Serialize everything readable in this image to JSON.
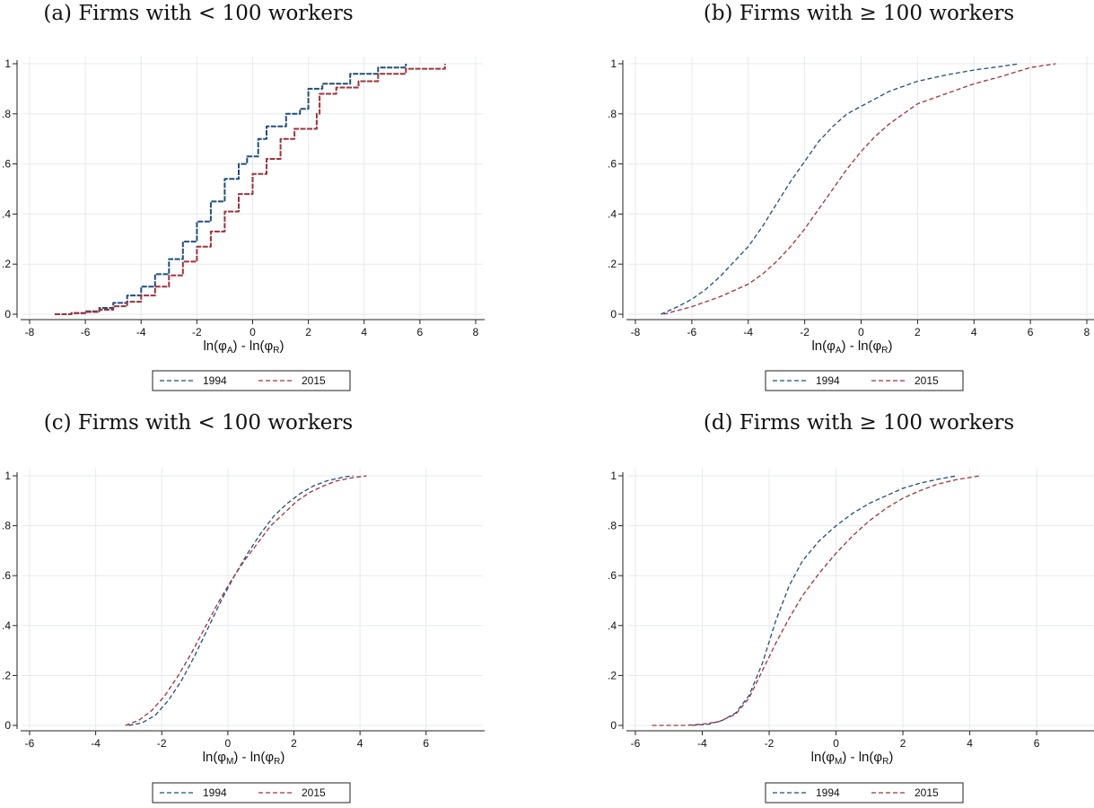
{
  "chart_data": [
    {
      "type": "line",
      "title": "(a) Firms with < 100 workers",
      "xlabel": {
        "main1": "ln(φ",
        "sub1": "A",
        "mid": ") - ln(φ",
        "sub2": "R",
        "end": ")"
      },
      "ylabel": "",
      "xlim": [
        -8,
        8
      ],
      "ylim": [
        0,
        1
      ],
      "xticks": [
        "-8",
        "-6",
        "-4",
        "-2",
        "0",
        "2",
        "4",
        "6",
        "8"
      ],
      "yticks": [
        "0",
        ".2",
        ".4",
        ".6",
        ".8",
        "1"
      ],
      "grid": true,
      "legend": [
        "1994",
        "2015"
      ],
      "series": [
        {
          "name": "1994",
          "color": "#1f4e7d",
          "steps": true,
          "points": [
            [
              -7.1,
              0
            ],
            [
              -6.5,
              0.005
            ],
            [
              -6.0,
              0.012
            ],
            [
              -5.5,
              0.025
            ],
            [
              -5.0,
              0.045
            ],
            [
              -4.5,
              0.075
            ],
            [
              -4.0,
              0.11
            ],
            [
              -3.5,
              0.16
            ],
            [
              -3.0,
              0.22
            ],
            [
              -2.5,
              0.29
            ],
            [
              -2.0,
              0.37
            ],
            [
              -1.5,
              0.45
            ],
            [
              -1.0,
              0.54
            ],
            [
              -0.5,
              0.6
            ],
            [
              -0.2,
              0.63
            ],
            [
              0.2,
              0.7
            ],
            [
              0.5,
              0.75
            ],
            [
              1.2,
              0.8
            ],
            [
              1.7,
              0.82
            ],
            [
              2.0,
              0.9
            ],
            [
              2.5,
              0.92
            ],
            [
              3.5,
              0.96
            ],
            [
              4.5,
              0.985
            ],
            [
              5.5,
              1.0
            ]
          ]
        },
        {
          "name": "2015",
          "color": "#a0323a",
          "steps": true,
          "points": [
            [
              -7.1,
              0
            ],
            [
              -6.5,
              0.004
            ],
            [
              -6.0,
              0.009
            ],
            [
              -5.5,
              0.018
            ],
            [
              -5.0,
              0.032
            ],
            [
              -4.5,
              0.05
            ],
            [
              -4.0,
              0.075
            ],
            [
              -3.5,
              0.11
            ],
            [
              -3.0,
              0.155
            ],
            [
              -2.5,
              0.21
            ],
            [
              -2.0,
              0.27
            ],
            [
              -1.5,
              0.33
            ],
            [
              -1.0,
              0.41
            ],
            [
              -0.5,
              0.48
            ],
            [
              0.0,
              0.56
            ],
            [
              0.5,
              0.62
            ],
            [
              1.0,
              0.7
            ],
            [
              1.5,
              0.74
            ],
            [
              2.3,
              0.8
            ],
            [
              2.4,
              0.88
            ],
            [
              3.0,
              0.905
            ],
            [
              3.8,
              0.93
            ],
            [
              4.5,
              0.96
            ],
            [
              5.5,
              0.98
            ],
            [
              6.9,
              1.0
            ]
          ]
        }
      ]
    },
    {
      "type": "line",
      "title": "(b) Firms with ≥ 100 workers",
      "xlabel": {
        "main1": "ln(φ",
        "sub1": "A",
        "mid": ") - ln(φ",
        "sub2": "R",
        "end": ")"
      },
      "ylabel": "",
      "xlim": [
        -8,
        8
      ],
      "ylim": [
        0,
        1
      ],
      "xticks": [
        "-8",
        "-6",
        "-4",
        "-2",
        "0",
        "2",
        "4",
        "6",
        "8"
      ],
      "yticks": [
        "0",
        ".2",
        ".4",
        ".6",
        ".8",
        "1"
      ],
      "grid": true,
      "legend": [
        "1994",
        "2015"
      ],
      "series": [
        {
          "name": "1994",
          "color": "#1f4e7d",
          "steps": false,
          "points": [
            [
              -7.1,
              0
            ],
            [
              -6.5,
              0.03
            ],
            [
              -6.0,
              0.06
            ],
            [
              -5.5,
              0.1
            ],
            [
              -5.0,
              0.15
            ],
            [
              -4.5,
              0.21
            ],
            [
              -4.0,
              0.27
            ],
            [
              -3.5,
              0.35
            ],
            [
              -3.0,
              0.44
            ],
            [
              -2.5,
              0.53
            ],
            [
              -2.0,
              0.61
            ],
            [
              -1.5,
              0.69
            ],
            [
              -1.0,
              0.75
            ],
            [
              -0.5,
              0.8
            ],
            [
              0.0,
              0.83
            ],
            [
              0.5,
              0.86
            ],
            [
              1.0,
              0.89
            ],
            [
              1.5,
              0.91
            ],
            [
              2.0,
              0.93
            ],
            [
              3.0,
              0.955
            ],
            [
              4.0,
              0.975
            ],
            [
              5.0,
              0.99
            ],
            [
              5.6,
              1.0
            ]
          ]
        },
        {
          "name": "2015",
          "color": "#a0323a",
          "steps": false,
          "points": [
            [
              -7.0,
              0
            ],
            [
              -6.0,
              0.03
            ],
            [
              -5.0,
              0.07
            ],
            [
              -4.0,
              0.12
            ],
            [
              -3.5,
              0.16
            ],
            [
              -3.0,
              0.21
            ],
            [
              -2.5,
              0.27
            ],
            [
              -2.0,
              0.34
            ],
            [
              -1.5,
              0.42
            ],
            [
              -1.0,
              0.5
            ],
            [
              -0.5,
              0.58
            ],
            [
              0.0,
              0.65
            ],
            [
              0.5,
              0.71
            ],
            [
              1.0,
              0.76
            ],
            [
              1.5,
              0.8
            ],
            [
              2.0,
              0.84
            ],
            [
              3.0,
              0.88
            ],
            [
              4.0,
              0.92
            ],
            [
              5.0,
              0.95
            ],
            [
              6.0,
              0.985
            ],
            [
              6.9,
              1.0
            ]
          ]
        }
      ]
    },
    {
      "type": "line",
      "title": "(c) Firms with < 100 workers",
      "xlabel": {
        "main1": "ln(φ",
        "sub1": "M",
        "mid": ") - ln(φ",
        "sub2": "R",
        "end": ")"
      },
      "ylabel": "",
      "xlim": [
        -6,
        7.5
      ],
      "ylim": [
        0,
        1
      ],
      "xticks": [
        "-6",
        "-4",
        "-2",
        "0",
        "2",
        "4",
        "6"
      ],
      "yticks": [
        "0",
        ".2",
        ".4",
        ".6",
        ".8",
        "1"
      ],
      "grid": true,
      "legend": [
        "1994",
        "2015"
      ],
      "series": [
        {
          "name": "1994",
          "color": "#1f4e7d",
          "steps": false,
          "points": [
            [
              -3.0,
              0
            ],
            [
              -2.6,
              0.01
            ],
            [
              -2.2,
              0.04
            ],
            [
              -1.8,
              0.1
            ],
            [
              -1.4,
              0.18
            ],
            [
              -1.0,
              0.28
            ],
            [
              -0.6,
              0.39
            ],
            [
              -0.2,
              0.5
            ],
            [
              0.2,
              0.6
            ],
            [
              0.6,
              0.69
            ],
            [
              1.0,
              0.77
            ],
            [
              1.4,
              0.84
            ],
            [
              1.8,
              0.89
            ],
            [
              2.2,
              0.93
            ],
            [
              2.6,
              0.96
            ],
            [
              3.0,
              0.98
            ],
            [
              3.5,
              0.995
            ],
            [
              3.8,
              1.0
            ]
          ]
        },
        {
          "name": "2015",
          "color": "#a0323a",
          "steps": false,
          "points": [
            [
              -3.1,
              0
            ],
            [
              -2.7,
              0.02
            ],
            [
              -2.3,
              0.06
            ],
            [
              -1.9,
              0.12
            ],
            [
              -1.5,
              0.2
            ],
            [
              -1.1,
              0.29
            ],
            [
              -0.7,
              0.39
            ],
            [
              -0.3,
              0.49
            ],
            [
              0.1,
              0.58
            ],
            [
              0.5,
              0.66
            ],
            [
              0.9,
              0.73
            ],
            [
              1.3,
              0.8
            ],
            [
              1.7,
              0.85
            ],
            [
              2.1,
              0.9
            ],
            [
              2.5,
              0.935
            ],
            [
              2.9,
              0.96
            ],
            [
              3.3,
              0.98
            ],
            [
              3.8,
              0.993
            ],
            [
              4.2,
              1.0
            ]
          ]
        }
      ]
    },
    {
      "type": "line",
      "title": "(d) Firms with ≥ 100 workers",
      "xlabel": {
        "main1": "ln(φ",
        "sub1": "M",
        "mid": ") - ln(φ",
        "sub2": "R",
        "end": ")"
      },
      "ylabel": "",
      "xlim": [
        -6,
        7.5
      ],
      "ylim": [
        0,
        1
      ],
      "xticks": [
        "-6",
        "-4",
        "-2",
        "0",
        "2",
        "4",
        "6"
      ],
      "yticks": [
        "0",
        ".2",
        ".4",
        ".6",
        ".8",
        "1"
      ],
      "grid": true,
      "legend": [
        "1994",
        "2015"
      ],
      "series": [
        {
          "name": "1994",
          "color": "#1f4e7d",
          "steps": false,
          "points": [
            [
              -4.3,
              0
            ],
            [
              -3.8,
              0.005
            ],
            [
              -3.4,
              0.02
            ],
            [
              -3.0,
              0.05
            ],
            [
              -2.6,
              0.12
            ],
            [
              -2.2,
              0.25
            ],
            [
              -1.8,
              0.42
            ],
            [
              -1.4,
              0.56
            ],
            [
              -1.0,
              0.66
            ],
            [
              -0.5,
              0.74
            ],
            [
              0.0,
              0.8
            ],
            [
              0.5,
              0.85
            ],
            [
              1.0,
              0.89
            ],
            [
              1.5,
              0.92
            ],
            [
              2.0,
              0.95
            ],
            [
              2.5,
              0.97
            ],
            [
              3.0,
              0.985
            ],
            [
              3.6,
              1.0
            ]
          ]
        },
        {
          "name": "2015",
          "color": "#a0323a",
          "steps": false,
          "points": [
            [
              -5.5,
              0
            ],
            [
              -4.5,
              0.0
            ],
            [
              -4.0,
              0.005
            ],
            [
              -3.5,
              0.015
            ],
            [
              -3.0,
              0.045
            ],
            [
              -2.6,
              0.11
            ],
            [
              -2.2,
              0.22
            ],
            [
              -1.8,
              0.33
            ],
            [
              -1.4,
              0.43
            ],
            [
              -1.0,
              0.52
            ],
            [
              -0.5,
              0.61
            ],
            [
              0.0,
              0.69
            ],
            [
              0.5,
              0.76
            ],
            [
              1.0,
              0.82
            ],
            [
              1.5,
              0.87
            ],
            [
              2.0,
              0.91
            ],
            [
              2.5,
              0.94
            ],
            [
              3.0,
              0.965
            ],
            [
              3.6,
              0.985
            ],
            [
              4.3,
              1.0
            ]
          ]
        }
      ]
    }
  ]
}
